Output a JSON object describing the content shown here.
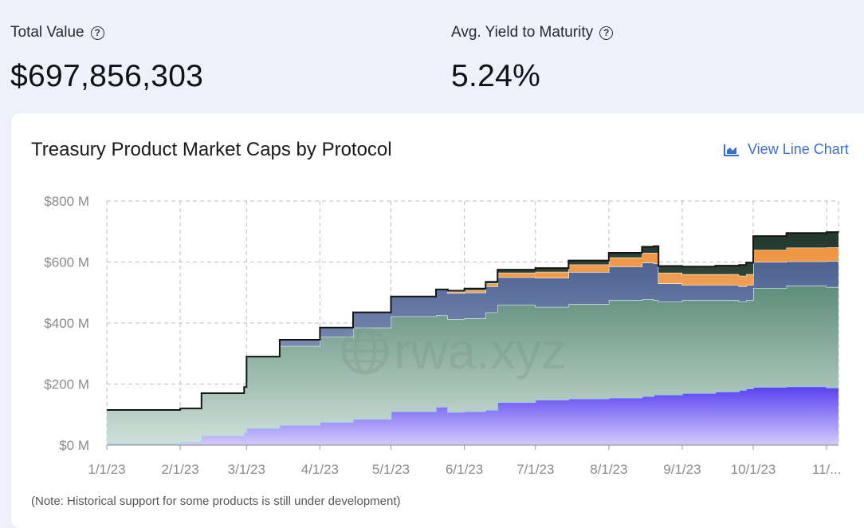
{
  "stats": {
    "total_value": {
      "label": "Total Value",
      "value": "$697,856,303"
    },
    "avg_yield": {
      "label": "Avg. Yield to Maturity",
      "value": "5.24%"
    }
  },
  "card": {
    "title": "Treasury Product Market Caps by Protocol",
    "view_line_chart": "View Line Chart",
    "note": "(Note: Historical support for some products is still under development)",
    "watermark": "rwa.xyz"
  },
  "colors": {
    "link": "#3a6fd1",
    "purple": "#6b4ff0",
    "green": "#6a9585",
    "blue": "#5b6e9b",
    "orange": "#ec9a4c",
    "dark": "#2f4539"
  },
  "chart_data": {
    "type": "area",
    "stacked": true,
    "title": "Treasury Product Market Caps by Protocol",
    "x_ticks": [
      "1/1/23",
      "2/1/23",
      "3/1/23",
      "4/1/23",
      "5/1/23",
      "6/1/23",
      "7/1/23",
      "8/1/23",
      "9/1/23",
      "10/1/23",
      "11/..."
    ],
    "y_ticks": [
      "$0 M",
      "$200 M",
      "$400 M",
      "$600 M",
      "$800 M"
    ],
    "ylim": [
      0,
      800
    ],
    "y_unit": "M",
    "grid": true,
    "x": [
      "2023-01-01",
      "2023-01-15",
      "2023-02-01",
      "2023-02-10",
      "2023-02-28",
      "2023-03-01",
      "2023-03-15",
      "2023-04-01",
      "2023-04-15",
      "2023-05-01",
      "2023-05-20",
      "2023-05-25",
      "2023-06-01",
      "2023-06-10",
      "2023-06-15",
      "2023-07-01",
      "2023-07-15",
      "2023-08-01",
      "2023-08-15",
      "2023-08-20",
      "2023-08-22",
      "2023-09-01",
      "2023-09-15",
      "2023-09-25",
      "2023-09-28",
      "2023-10-01",
      "2023-10-15",
      "2023-11-01",
      "2023-11-06"
    ],
    "series": [
      {
        "color": "#6b4ff0",
        "values": [
          5,
          5,
          10,
          30,
          40,
          55,
          65,
          75,
          85,
          110,
          125,
          108,
          110,
          115,
          140,
          148,
          152,
          155,
          160,
          165,
          165,
          170,
          175,
          180,
          185,
          190,
          192,
          188,
          185
        ]
      },
      {
        "color": "#6a9585",
        "values": [
          110,
          110,
          110,
          140,
          150,
          235,
          260,
          280,
          300,
          312,
          300,
          305,
          305,
          320,
          320,
          305,
          310,
          320,
          318,
          310,
          305,
          305,
          300,
          290,
          290,
          325,
          330,
          330,
          330
        ]
      },
      {
        "color": "#5b6e9b",
        "values": [
          0,
          0,
          0,
          0,
          0,
          0,
          20,
          30,
          50,
          65,
          85,
          85,
          85,
          85,
          90,
          95,
          105,
          110,
          120,
          120,
          60,
          50,
          50,
          50,
          50,
          85,
          80,
          85,
          85
        ]
      },
      {
        "color": "#ec9a4c",
        "values": [
          0,
          0,
          0,
          0,
          0,
          0,
          0,
          0,
          0,
          0,
          0,
          5,
          8,
          10,
          15,
          20,
          25,
          30,
          32,
          35,
          35,
          35,
          35,
          35,
          35,
          40,
          45,
          45,
          45
        ]
      },
      {
        "color": "#2f4539",
        "values": [
          0,
          0,
          0,
          0,
          0,
          0,
          0,
          0,
          0,
          0,
          0,
          3,
          5,
          5,
          10,
          12,
          13,
          15,
          20,
          22,
          22,
          25,
          28,
          35,
          38,
          45,
          48,
          50,
          52
        ]
      }
    ]
  }
}
